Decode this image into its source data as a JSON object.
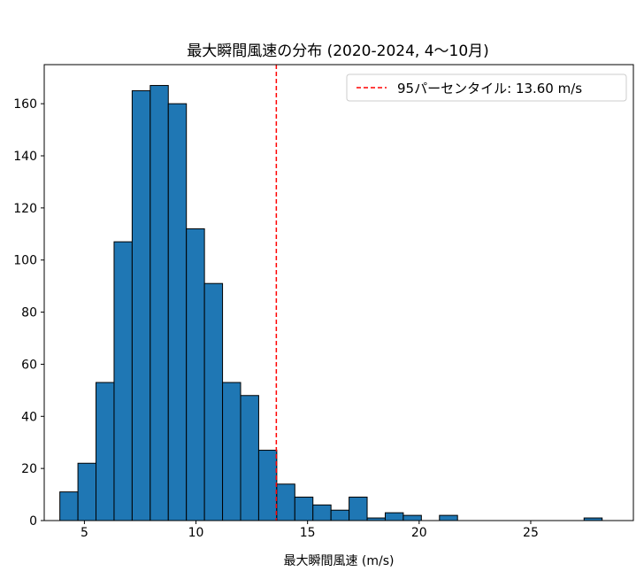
{
  "chart_data": {
    "type": "bar",
    "title": "最大瞬間風速の分布 (2020-2024, 4〜10月)",
    "xlabel": "最大瞬間風速 (m/s)",
    "ylabel": "",
    "xlim": [
      3.2,
      29.6
    ],
    "ylim": [
      0,
      175
    ],
    "x_ticks": [
      5,
      10,
      15,
      20,
      25
    ],
    "y_ticks": [
      0,
      20,
      40,
      60,
      80,
      100,
      120,
      140,
      160
    ],
    "bin_edges": [
      3.9,
      4.71,
      5.52,
      6.33,
      7.14,
      7.95,
      8.76,
      9.57,
      10.38,
      11.19,
      12.0,
      12.81,
      13.62,
      14.43,
      15.24,
      16.05,
      16.86,
      17.67,
      18.48,
      19.29,
      20.1,
      20.91,
      21.72,
      22.53,
      23.34,
      24.15,
      24.96,
      25.77,
      26.58,
      27.39,
      28.2
    ],
    "counts": [
      11,
      22,
      53,
      107,
      165,
      167,
      160,
      112,
      91,
      53,
      48,
      27,
      14,
      9,
      6,
      4,
      9,
      1,
      3,
      2,
      0,
      2,
      0,
      0,
      0,
      0,
      0,
      0,
      0,
      1
    ],
    "bar_color": "#1f77b4",
    "bar_edge_color": "#000000",
    "reference_line": {
      "x": 13.6,
      "style": "dashed",
      "color": "#ff0000",
      "label": "95パーセンタイル: 13.60 m/s"
    },
    "legend_position": "top-right",
    "grid": false
  }
}
